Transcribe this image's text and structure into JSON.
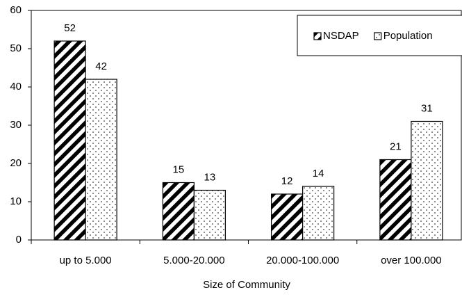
{
  "chart_data": {
    "type": "bar",
    "x_label": "Size of Community",
    "categories": [
      "up to 5.000",
      "5.000-20.000",
      "20.000-100.000",
      "over 100.000"
    ],
    "series": [
      {
        "name": "NSDAP",
        "color": "#000000",
        "pattern": "hatch",
        "values": [
          52,
          15,
          12,
          21
        ]
      },
      {
        "name": "Population",
        "color": "#000000",
        "pattern": "dots",
        "values": [
          42,
          13,
          14,
          31
        ]
      }
    ],
    "ylim": [
      0,
      60
    ],
    "yticks": [
      0,
      10,
      20,
      30,
      40,
      50,
      60
    ],
    "legend": "top-right"
  }
}
